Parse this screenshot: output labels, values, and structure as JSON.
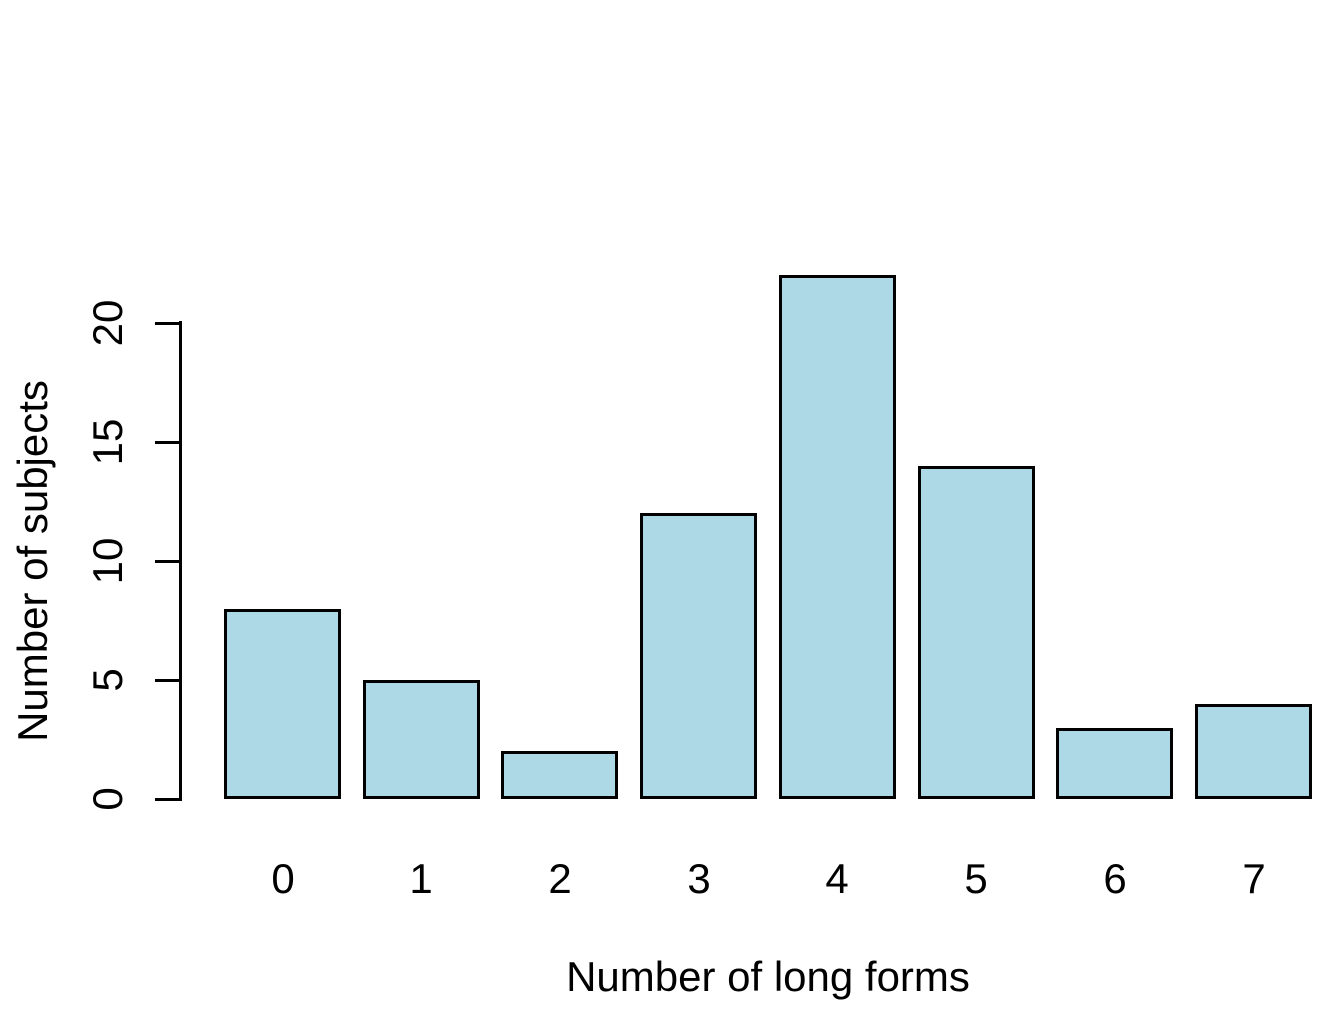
{
  "chart_data": {
    "type": "bar",
    "title": "",
    "xlabel": "Number of long forms",
    "ylabel": "Number of subjects",
    "categories": [
      "0",
      "1",
      "2",
      "3",
      "4",
      "5",
      "6",
      "7"
    ],
    "values": [
      8,
      5,
      2,
      12,
      22,
      14,
      3,
      4
    ],
    "yticks": [
      0,
      5,
      10,
      15,
      20
    ],
    "ylim": [
      0,
      22
    ],
    "grid": false,
    "legend": null,
    "colors": {
      "bar_fill": "#ADD8E6",
      "bar_border": "#000000",
      "axis": "#000000",
      "text": "#000000",
      "background": "#FFFFFF"
    }
  }
}
